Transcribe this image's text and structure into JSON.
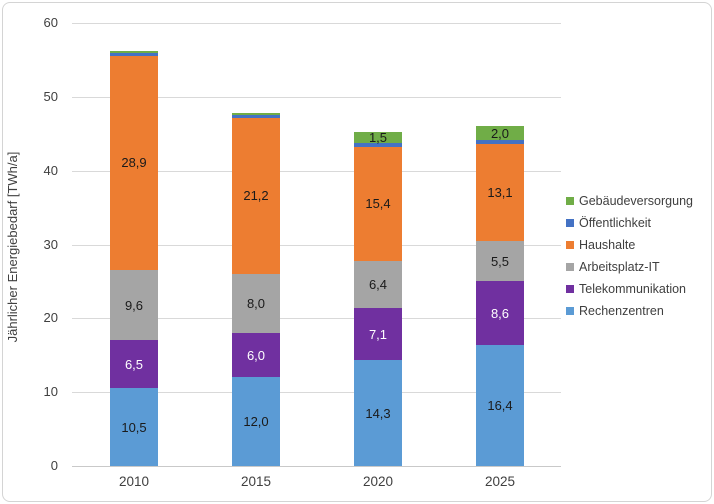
{
  "chart_data": {
    "type": "bar",
    "subtype": "stacked",
    "title": "",
    "xlabel": "",
    "ylabel": "Jährlicher Energiebedarf [TWh/a]",
    "ylim": [
      0,
      60
    ],
    "ytick_interval": 10,
    "ytick_labels": [
      "0",
      "10",
      "20",
      "30",
      "40",
      "50",
      "60"
    ],
    "grid": true,
    "legend_position": "right",
    "categories": [
      "2010",
      "2015",
      "2020",
      "2025"
    ],
    "series": [
      {
        "name": "Rechenzentren",
        "color": "#5B9BD5",
        "values": [
          10.5,
          12.0,
          14.3,
          16.4
        ],
        "labels": [
          "10,5",
          "12,0",
          "14,3",
          "16,4"
        ],
        "label_color": "#1a1a1a"
      },
      {
        "name": "Telekommunikation",
        "color": "#7030A0",
        "values": [
          6.5,
          6.0,
          7.1,
          8.6
        ],
        "labels": [
          "6,5",
          "6,0",
          "7,1",
          "8,6"
        ],
        "label_color": "#ffffff"
      },
      {
        "name": "Arbeitsplatz-IT",
        "color": "#A5A5A5",
        "values": [
          9.6,
          8.0,
          6.4,
          5.5
        ],
        "labels": [
          "9,6",
          "8,0",
          "6,4",
          "5,5"
        ],
        "label_color": "#1a1a1a"
      },
      {
        "name": "Haushalte",
        "color": "#ED7D31",
        "values": [
          28.9,
          21.2,
          15.4,
          13.1
        ],
        "labels": [
          "28,9",
          "21,2",
          "15,4",
          "13,1"
        ],
        "label_color": "#1a1a1a"
      },
      {
        "name": "Öffentlichkeit",
        "color": "#4472C4",
        "values": [
          0.5,
          0.4,
          0.5,
          0.5
        ],
        "labels": [
          null,
          null,
          null,
          null
        ],
        "label_color": "#1a1a1a"
      },
      {
        "name": "Gebäudeversorgung",
        "color": "#70AD47",
        "values": [
          0.2,
          0.2,
          1.5,
          2.0
        ],
        "labels": [
          null,
          null,
          "1,5",
          "2,0"
        ],
        "label_color": "#1a1a1a"
      }
    ],
    "legend": [
      "Gebäudeversorgung",
      "Öffentlichkeit",
      "Haushalte",
      "Arbeitsplatz-IT",
      "Telekommunikation",
      "Rechenzentren"
    ]
  }
}
